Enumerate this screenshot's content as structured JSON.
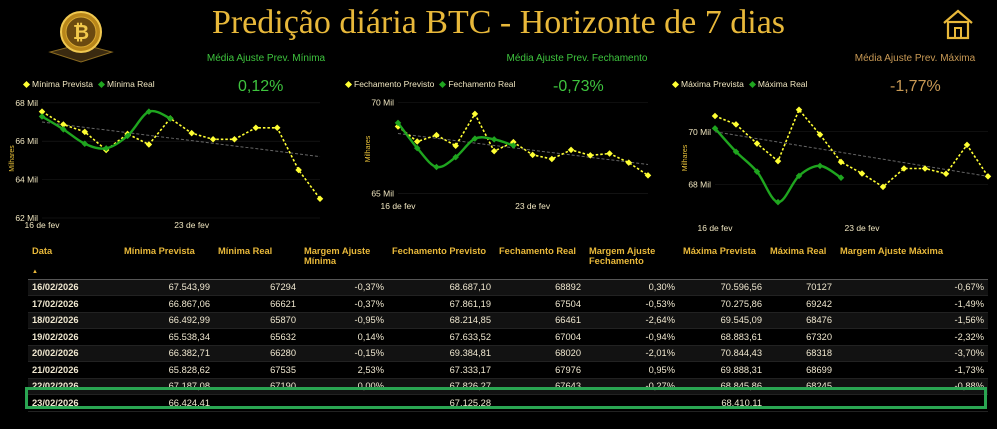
{
  "header": {
    "title": "Predição diária BTC - Horizonte de 7 dias"
  },
  "icons": {
    "logo": "bitcoin-logo-icon",
    "home": "home-icon"
  },
  "colors": {
    "gold": "#e8b83a",
    "yellow": "#ffff33",
    "green": "#1fa51f",
    "trend": "#666666",
    "kpi_green": "#3ec43e",
    "kpi_brown": "#c99a55",
    "highlight": "#2aa552"
  },
  "panels": [
    {
      "title": "Média Ajuste Prev. Mínima",
      "kpi": "0,12%",
      "legend_pred": "Mínima Prevista",
      "legend_real": "Mínima Real"
    },
    {
      "title": "Média Ajuste Prev. Fechamento",
      "kpi": "-0,73%",
      "legend_pred": "Fechamento Previsto",
      "legend_real": "Fechamento Real"
    },
    {
      "title": "Média Ajuste Prev. Máxima",
      "kpi": "-1,77%",
      "legend_pred": "Máxima Prevista",
      "legend_real": "Máxima Real"
    }
  ],
  "chart_data": [
    {
      "type": "line",
      "ylabel": "Milhares",
      "x_ticks": [
        "16 de fev",
        "23 de fev"
      ],
      "y_ticks": [
        62,
        64,
        66,
        68
      ],
      "y_tick_labels": [
        "62 Mil",
        "64 Mil",
        "66 Mil",
        "68 Mil"
      ],
      "ylim": [
        62,
        68.2
      ],
      "x_days": [
        16,
        17,
        18,
        19,
        20,
        21,
        22,
        23,
        24,
        25,
        26,
        27,
        28,
        29
      ],
      "series": [
        {
          "name": "Mínima Prevista",
          "color": "#ffff33",
          "dashed": true,
          "markers": true,
          "values": [
            67.54,
            66.87,
            66.49,
            65.54,
            66.38,
            65.83,
            67.19,
            66.42,
            66.1,
            66.1,
            66.7,
            66.7,
            64.5,
            63.0
          ]
        },
        {
          "name": "Mínima Real",
          "color": "#1fa51f",
          "dashed": false,
          "markers": true,
          "values": [
            67.29,
            66.62,
            65.87,
            65.63,
            66.28,
            67.54,
            67.19
          ]
        }
      ],
      "trend": [
        67.0,
        65.2
      ]
    },
    {
      "type": "line",
      "ylabel": "Milhares",
      "x_ticks": [
        "16 de fev",
        "23 de fev"
      ],
      "y_ticks": [
        65,
        70
      ],
      "y_tick_labels": [
        "65 Mil",
        "70 Mil"
      ],
      "ylim": [
        64.7,
        70.2
      ],
      "x_days": [
        16,
        17,
        18,
        19,
        20,
        21,
        22,
        23,
        24,
        25,
        26,
        27,
        28,
        29
      ],
      "series": [
        {
          "name": "Fechamento Previsto",
          "color": "#ffff33",
          "dashed": true,
          "markers": true,
          "values": [
            68.69,
            67.86,
            68.21,
            67.63,
            69.38,
            67.33,
            67.83,
            67.13,
            66.9,
            67.4,
            67.1,
            67.2,
            66.7,
            66.0
          ]
        },
        {
          "name": "Fechamento Real",
          "color": "#1fa51f",
          "dashed": false,
          "markers": true,
          "values": [
            68.89,
            67.5,
            66.46,
            67.0,
            68.02,
            67.98,
            67.64
          ]
        }
      ],
      "trend": [
        68.3,
        66.6
      ]
    },
    {
      "type": "line",
      "ylabel": "Milhares",
      "x_ticks": [
        "16 de fev",
        "23 de fev"
      ],
      "y_ticks": [
        68,
        70
      ],
      "y_tick_labels": [
        "68 Mil",
        "70 Mil"
      ],
      "ylim": [
        66.6,
        71.4
      ],
      "x_days": [
        16,
        17,
        18,
        19,
        20,
        21,
        22,
        23,
        24,
        25,
        26,
        27,
        28,
        29
      ],
      "series": [
        {
          "name": "Máxima Prevista",
          "color": "#ffff33",
          "dashed": true,
          "markers": true,
          "values": [
            70.6,
            70.28,
            69.55,
            68.88,
            70.84,
            69.89,
            68.85,
            68.41,
            67.9,
            68.6,
            68.6,
            68.4,
            69.5,
            68.3
          ]
        },
        {
          "name": "Máxima Real",
          "color": "#1fa51f",
          "dashed": false,
          "markers": true,
          "values": [
            70.13,
            69.24,
            68.48,
            67.32,
            68.32,
            68.7,
            68.25
          ]
        }
      ],
      "trend": [
        70.0,
        68.3
      ]
    }
  ],
  "table": {
    "headers": [
      "Data",
      "Mínima Prevista",
      "Mínima Real",
      "Margem Ajuste Mínima",
      "Fechamento Previsto",
      "Fechamento Real",
      "Margem Ajuste Fechamento",
      "Máxima Prevista",
      "Máxima Real",
      "Margem Ajuste Máxima"
    ],
    "sort_indicator": "▲",
    "rows": [
      [
        "16/02/2026",
        "67.543,99",
        "67294",
        "-0,37%",
        "68.687,10",
        "68892",
        "0,30%",
        "70.596,56",
        "70127",
        "-0,67%"
      ],
      [
        "17/02/2026",
        "66.867,06",
        "66621",
        "-0,37%",
        "67.861,19",
        "67504",
        "-0,53%",
        "70.275,86",
        "69242",
        "-1,49%"
      ],
      [
        "18/02/2026",
        "66.492,99",
        "65870",
        "-0,95%",
        "68.214,85",
        "66461",
        "-2,64%",
        "69.545,09",
        "68476",
        "-1,56%"
      ],
      [
        "19/02/2026",
        "65.538,34",
        "65632",
        "0,14%",
        "67.633,52",
        "67004",
        "-0,94%",
        "68.883,61",
        "67320",
        "-2,32%"
      ],
      [
        "20/02/2026",
        "66.382,71",
        "66280",
        "-0,15%",
        "69.384,81",
        "68020",
        "-2,01%",
        "70.844,43",
        "68318",
        "-3,70%"
      ],
      [
        "21/02/2026",
        "65.828,62",
        "67535",
        "2,53%",
        "67.333,17",
        "67976",
        "0,95%",
        "69.888,31",
        "68699",
        "-1,73%"
      ],
      [
        "22/02/2026",
        "67.187,08",
        "67190",
        "0,00%",
        "67.826,27",
        "67643",
        "-0,27%",
        "68.845,86",
        "68245",
        "-0,88%"
      ],
      [
        "23/02/2026",
        "66.424,41",
        "",
        "",
        "67.125,28",
        "",
        "",
        "68.410,11",
        "",
        ""
      ]
    ]
  }
}
